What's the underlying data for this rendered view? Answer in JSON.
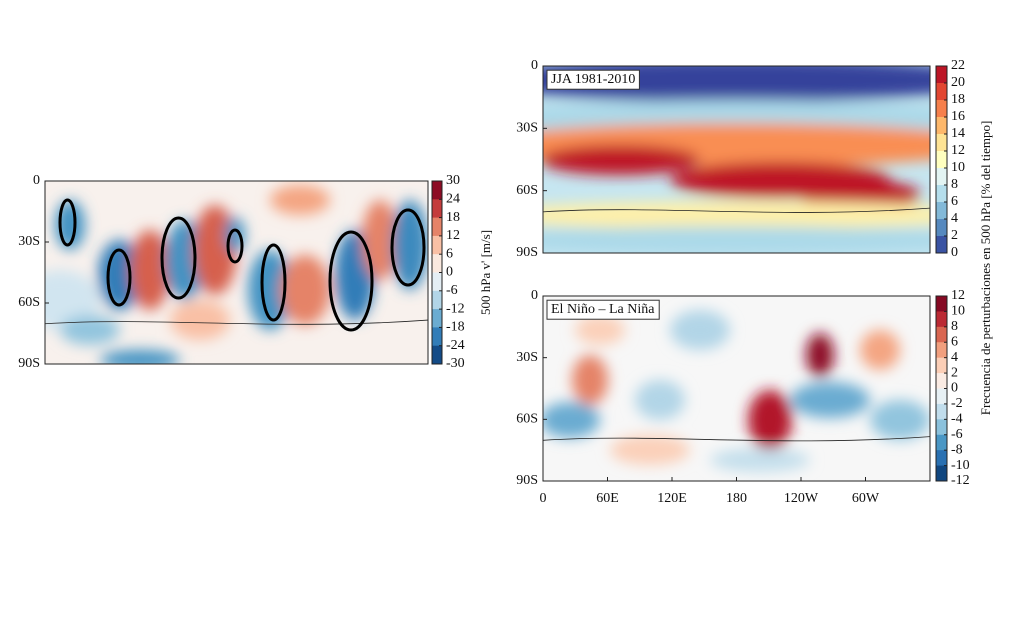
{
  "panels": [
    {
      "yticks": [
        "0",
        "30S",
        "60S",
        "90S"
      ],
      "colorbar": {
        "label": "500 hPa v' [m/s]",
        "clim": [
          -30,
          30
        ],
        "ticks": [
          30,
          24,
          18,
          12,
          6,
          0,
          -6,
          -12,
          -18,
          -24,
          -30
        ],
        "colormap": [
          "#053061",
          "#2166ac",
          "#4393c3",
          "#92c5de",
          "#d1e5f0",
          "#f7f7f7",
          "#fddbc7",
          "#f4a582",
          "#d6604d",
          "#b2182b",
          "#67001f"
        ]
      }
    },
    {
      "title": "JJA 1981-2010",
      "yticks": [
        "0",
        "30S",
        "60S",
        "90S"
      ],
      "colorbar": {
        "clim": [
          0,
          22
        ],
        "ticks": [
          22,
          20,
          18,
          16,
          14,
          12,
          10,
          8,
          6,
          4,
          2,
          0
        ],
        "colormap": [
          "#313695",
          "#4575b4",
          "#74add1",
          "#abd9e9",
          "#e0f3f8",
          "#ffffbf",
          "#fee090",
          "#fdae61",
          "#f46d43",
          "#d73027",
          "#a50026"
        ]
      }
    },
    {
      "title": "El Niño – La Niña",
      "yticks": [
        "0",
        "30S",
        "60S",
        "90S"
      ],
      "xticks": [
        "0",
        "60E",
        "120E",
        "180",
        "120W",
        "60W"
      ],
      "colorbar": {
        "clim": [
          -12,
          12
        ],
        "ticks": [
          12,
          10,
          8,
          6,
          4,
          2,
          0,
          -2,
          -4,
          -6,
          -8,
          -10,
          -12
        ],
        "colormap": [
          "#053061",
          "#2166ac",
          "#4393c3",
          "#92c5de",
          "#d1e5f0",
          "#f7f7f7",
          "#fddbc7",
          "#f4a582",
          "#d6604d",
          "#b2182b",
          "#67001f"
        ]
      }
    }
  ],
  "shared_colorbar_label": "Frecuencia de perturbaciones en 500 hPa [% del tiempo]"
}
